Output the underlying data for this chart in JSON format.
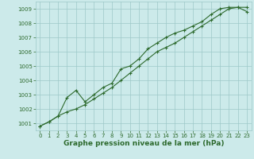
{
  "line1_x": [
    0,
    1,
    2,
    3,
    4,
    5,
    6,
    7,
    8,
    9,
    10,
    11,
    12,
    13,
    14,
    15,
    16,
    17,
    18,
    19,
    20,
    21,
    22,
    23
  ],
  "line1_y": [
    1000.8,
    1001.1,
    1001.5,
    1002.8,
    1003.3,
    1002.5,
    1003.0,
    1003.5,
    1003.8,
    1004.8,
    1005.0,
    1005.5,
    1006.2,
    1006.6,
    1007.0,
    1007.3,
    1007.5,
    1007.8,
    1008.1,
    1008.6,
    1009.0,
    1009.1,
    1009.1,
    1008.8
  ],
  "line2_x": [
    0,
    1,
    2,
    3,
    4,
    5,
    6,
    7,
    8,
    9,
    10,
    11,
    12,
    13,
    14,
    15,
    16,
    17,
    18,
    19,
    20,
    21,
    22,
    23
  ],
  "line2_y": [
    1000.8,
    1001.1,
    1001.5,
    1001.8,
    1002.0,
    1002.3,
    1002.7,
    1003.1,
    1003.5,
    1004.0,
    1004.5,
    1005.0,
    1005.5,
    1006.0,
    1006.3,
    1006.6,
    1007.0,
    1007.4,
    1007.8,
    1008.2,
    1008.6,
    1009.0,
    1009.1,
    1009.1
  ],
  "line_color": "#2d6a2d",
  "bg_color": "#cceaea",
  "grid_color": "#9dc8c8",
  "xlabel": "Graphe pression niveau de la mer (hPa)",
  "ylim": [
    1000.5,
    1009.5
  ],
  "xlim": [
    -0.5,
    23.5
  ],
  "yticks": [
    1001,
    1002,
    1003,
    1004,
    1005,
    1006,
    1007,
    1008,
    1009
  ],
  "xticks": [
    0,
    1,
    2,
    3,
    4,
    5,
    6,
    7,
    8,
    9,
    10,
    11,
    12,
    13,
    14,
    15,
    16,
    17,
    18,
    19,
    20,
    21,
    22,
    23
  ],
  "tick_fontsize": 5.0,
  "xlabel_fontsize": 6.5,
  "marker_size": 3.5,
  "linewidth": 0.8
}
